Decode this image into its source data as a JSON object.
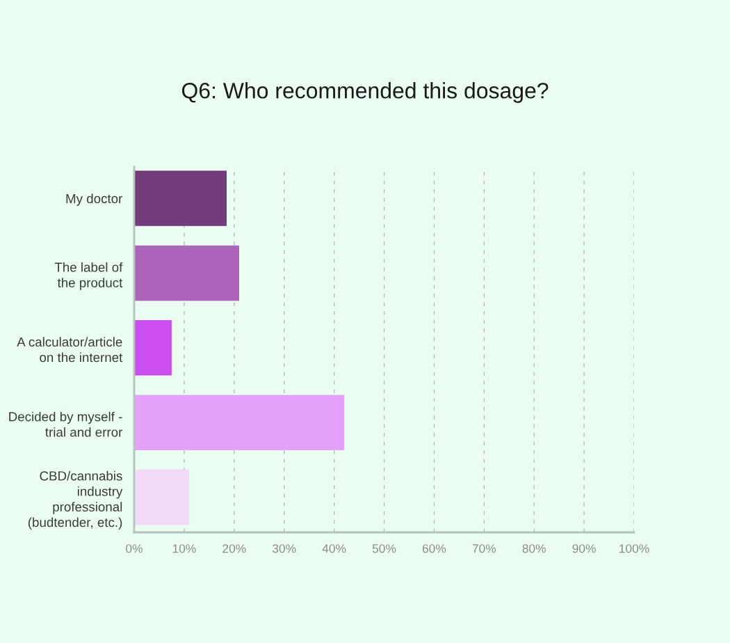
{
  "chart_data": {
    "type": "bar",
    "orientation": "horizontal",
    "title": "Q6: Who recommended this dosage?",
    "categories": [
      "My doctor",
      "The label of\nthe product",
      "A calculator/article\non the internet",
      "Decided by myself -\ntrial and error",
      "CBD/cannabis\nindustry\nprofessional\n(budtender, etc.)"
    ],
    "values": [
      18.5,
      21,
      7.5,
      42,
      11
    ],
    "colors": [
      "#733c7c",
      "#ad65bb",
      "#cb4fef",
      "#e4a2fb",
      "#f1d9f7"
    ],
    "xlim": [
      0,
      100
    ],
    "xticks": [
      {
        "value": 0,
        "label": "0%"
      },
      {
        "value": 10,
        "label": "10%"
      },
      {
        "value": 20,
        "label": "20%"
      },
      {
        "value": 30,
        "label": "30%"
      },
      {
        "value": 40,
        "label": "40%"
      },
      {
        "value": 50,
        "label": "50%"
      },
      {
        "value": 60,
        "label": "60%"
      },
      {
        "value": 70,
        "label": "70%"
      },
      {
        "value": 80,
        "label": "80%"
      },
      {
        "value": 90,
        "label": "90%"
      },
      {
        "value": 100,
        "label": "100%"
      }
    ],
    "grid": "x"
  }
}
